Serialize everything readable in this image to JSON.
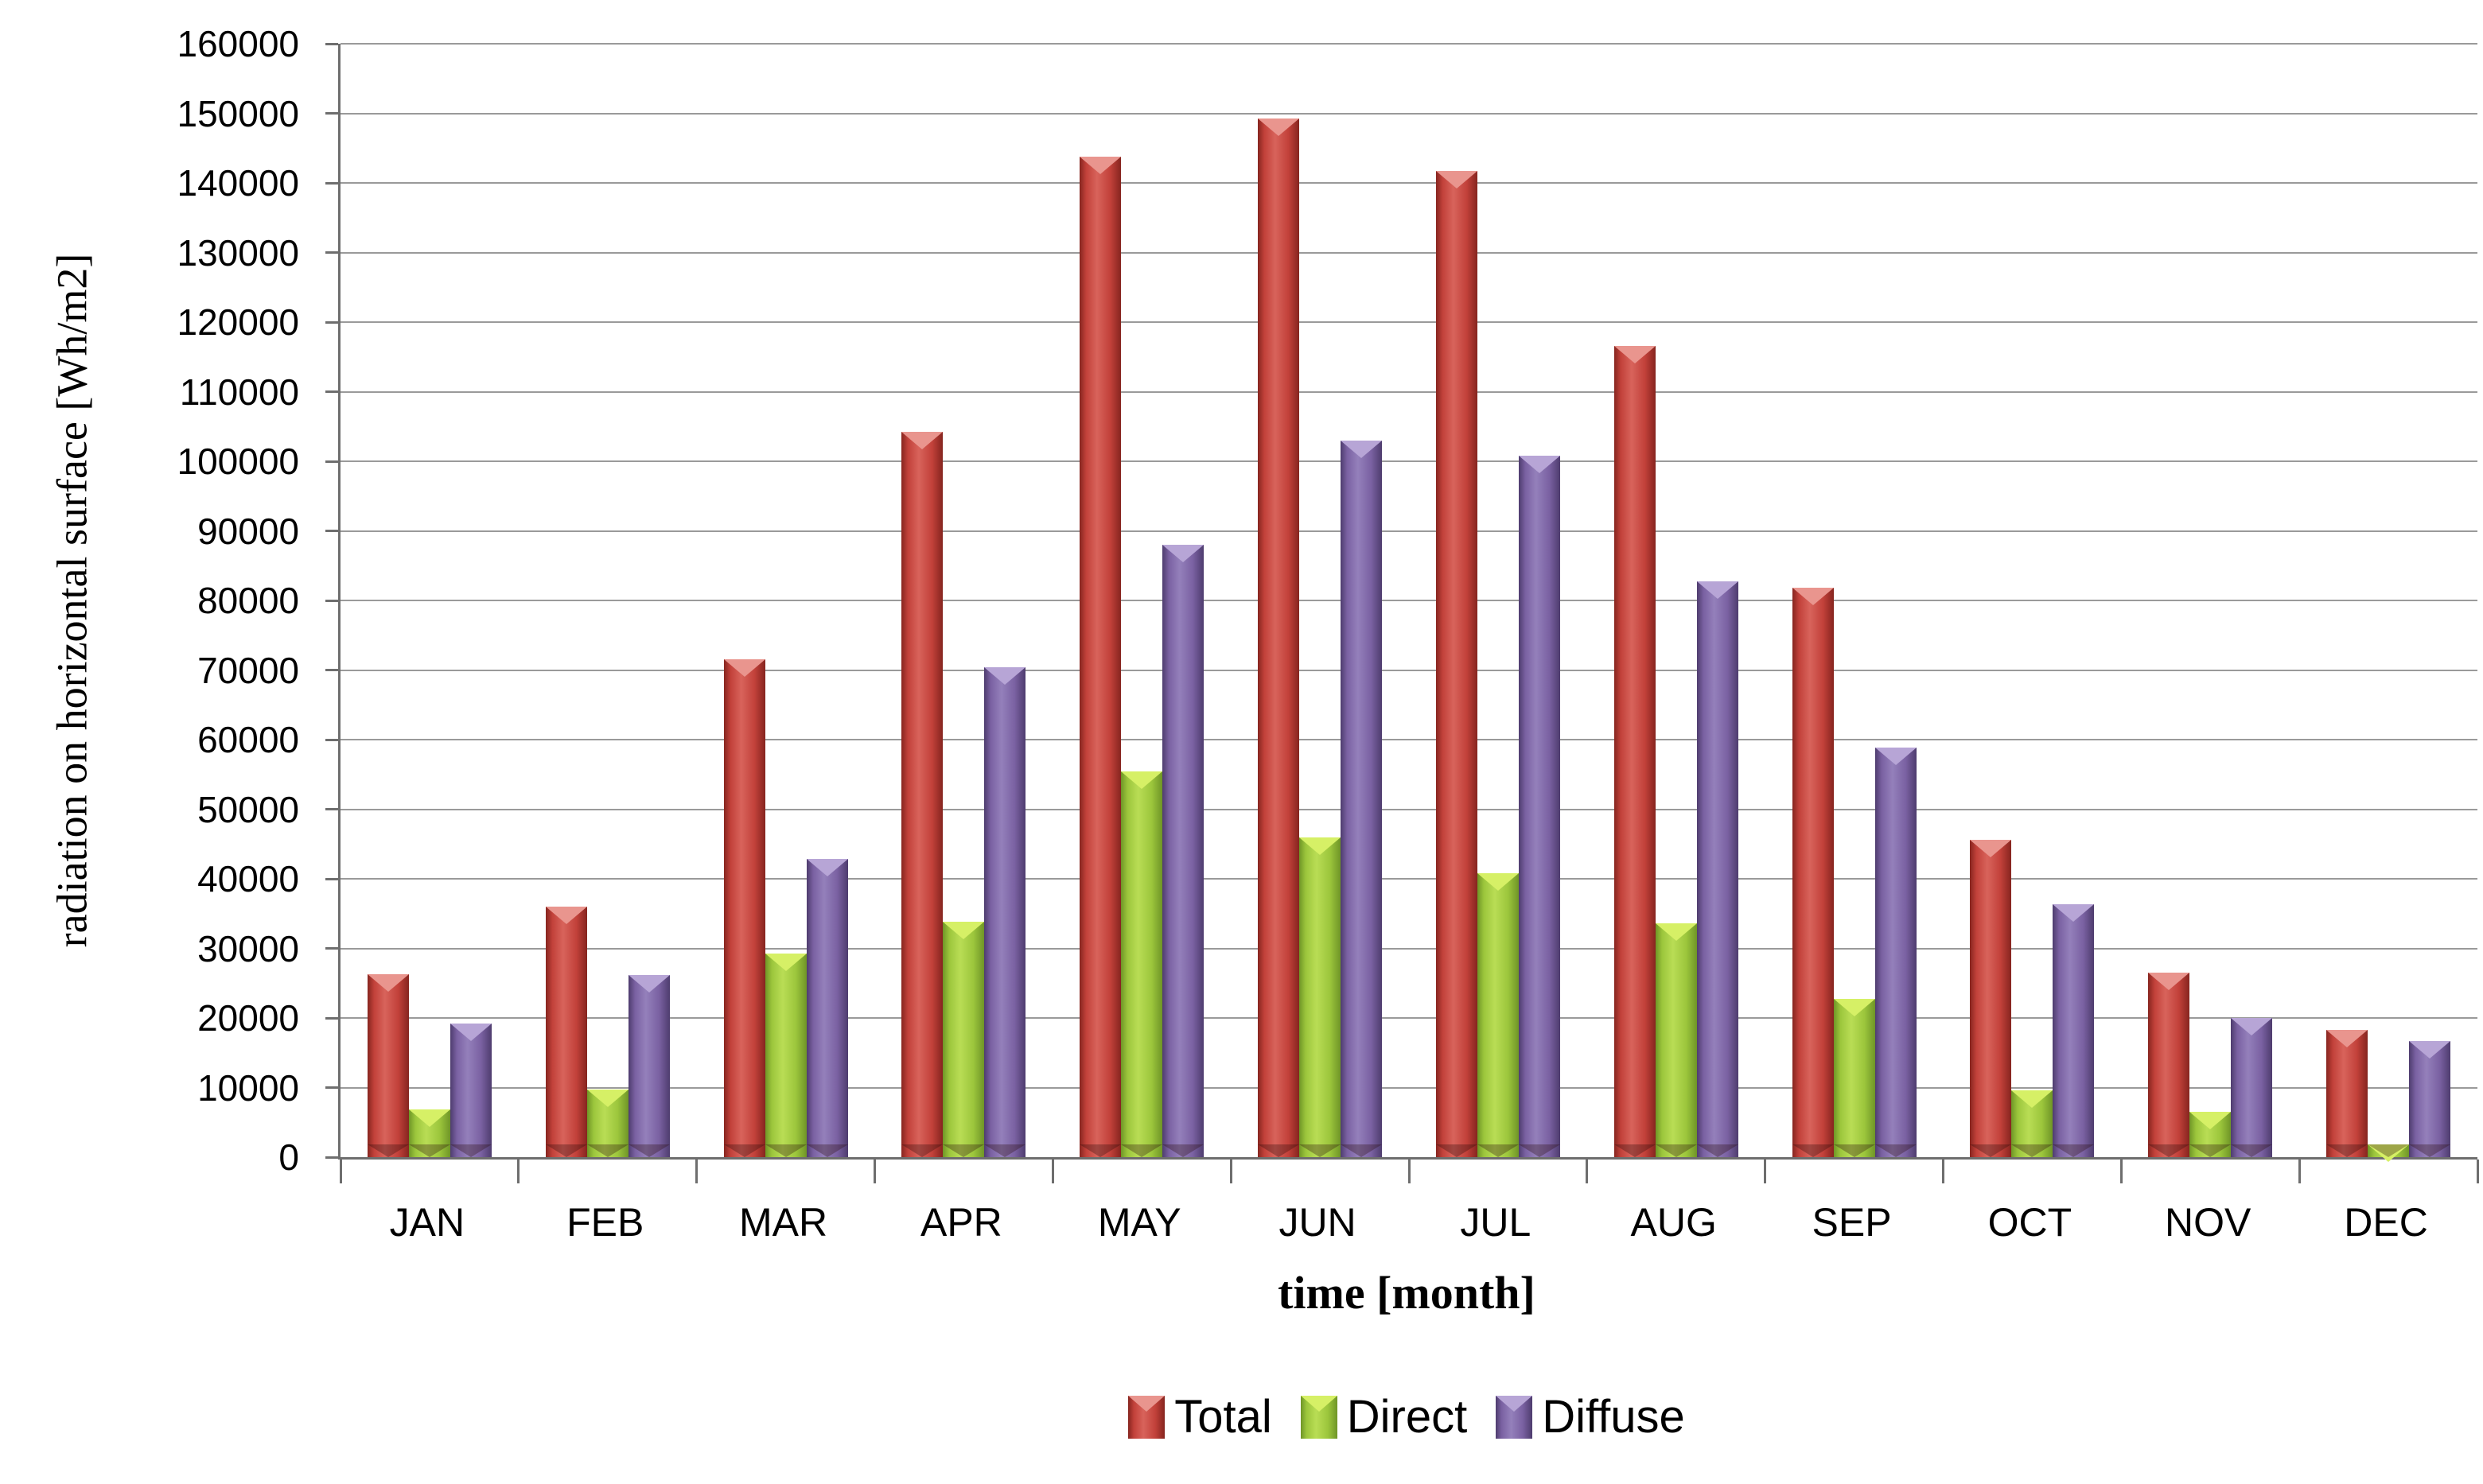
{
  "chart_data": {
    "type": "bar",
    "title": "",
    "categories": [
      "JAN",
      "FEB",
      "MAR",
      "APR",
      "MAY",
      "JUN",
      "JUL",
      "AUG",
      "SEP",
      "OCT",
      "NOV",
      "DEC"
    ],
    "series": [
      {
        "name": "Total",
        "color": "#c2413a",
        "color_light": "#d8635b",
        "color_dark": "#86251f",
        "color_tip": "#e9958e",
        "values": [
          26300,
          36000,
          71600,
          104200,
          143800,
          149300,
          141700,
          116600,
          81800,
          45600,
          26500,
          18300
        ]
      },
      {
        "name": "Direct",
        "color": "#9cc63c",
        "color_light": "#b9dd55",
        "color_dark": "#6f9527",
        "color_tip": "#d6f066",
        "values": [
          6900,
          9700,
          29300,
          33800,
          55400,
          46000,
          40800,
          33600,
          22700,
          9600,
          6500,
          1800
        ]
      },
      {
        "name": "Diffuse",
        "color": "#7a61a2",
        "color_light": "#9480bb",
        "color_dark": "#4e3c6e",
        "color_tip": "#b7a5d6",
        "values": [
          19200,
          26200,
          42900,
          70400,
          88000,
          103000,
          100800,
          82800,
          58900,
          36300,
          20000,
          16700
        ]
      }
    ],
    "xlabel": "time [month]",
    "ylabel": "radiation on horizontal surface [Wh/m2]",
    "ylim": [
      0,
      160000
    ],
    "ytick_step": 10000,
    "y_ticks": [
      "0",
      "10000",
      "20000",
      "30000",
      "40000",
      "50000",
      "60000",
      "70000",
      "80000",
      "90000",
      "100000",
      "110000",
      "120000",
      "130000",
      "140000",
      "150000",
      "160000"
    ],
    "grid": true,
    "legend_position": "bottom",
    "gridline_color": "#9a9a9a",
    "axis_color": "#6e6e6e",
    "text_color": "#000000"
  }
}
